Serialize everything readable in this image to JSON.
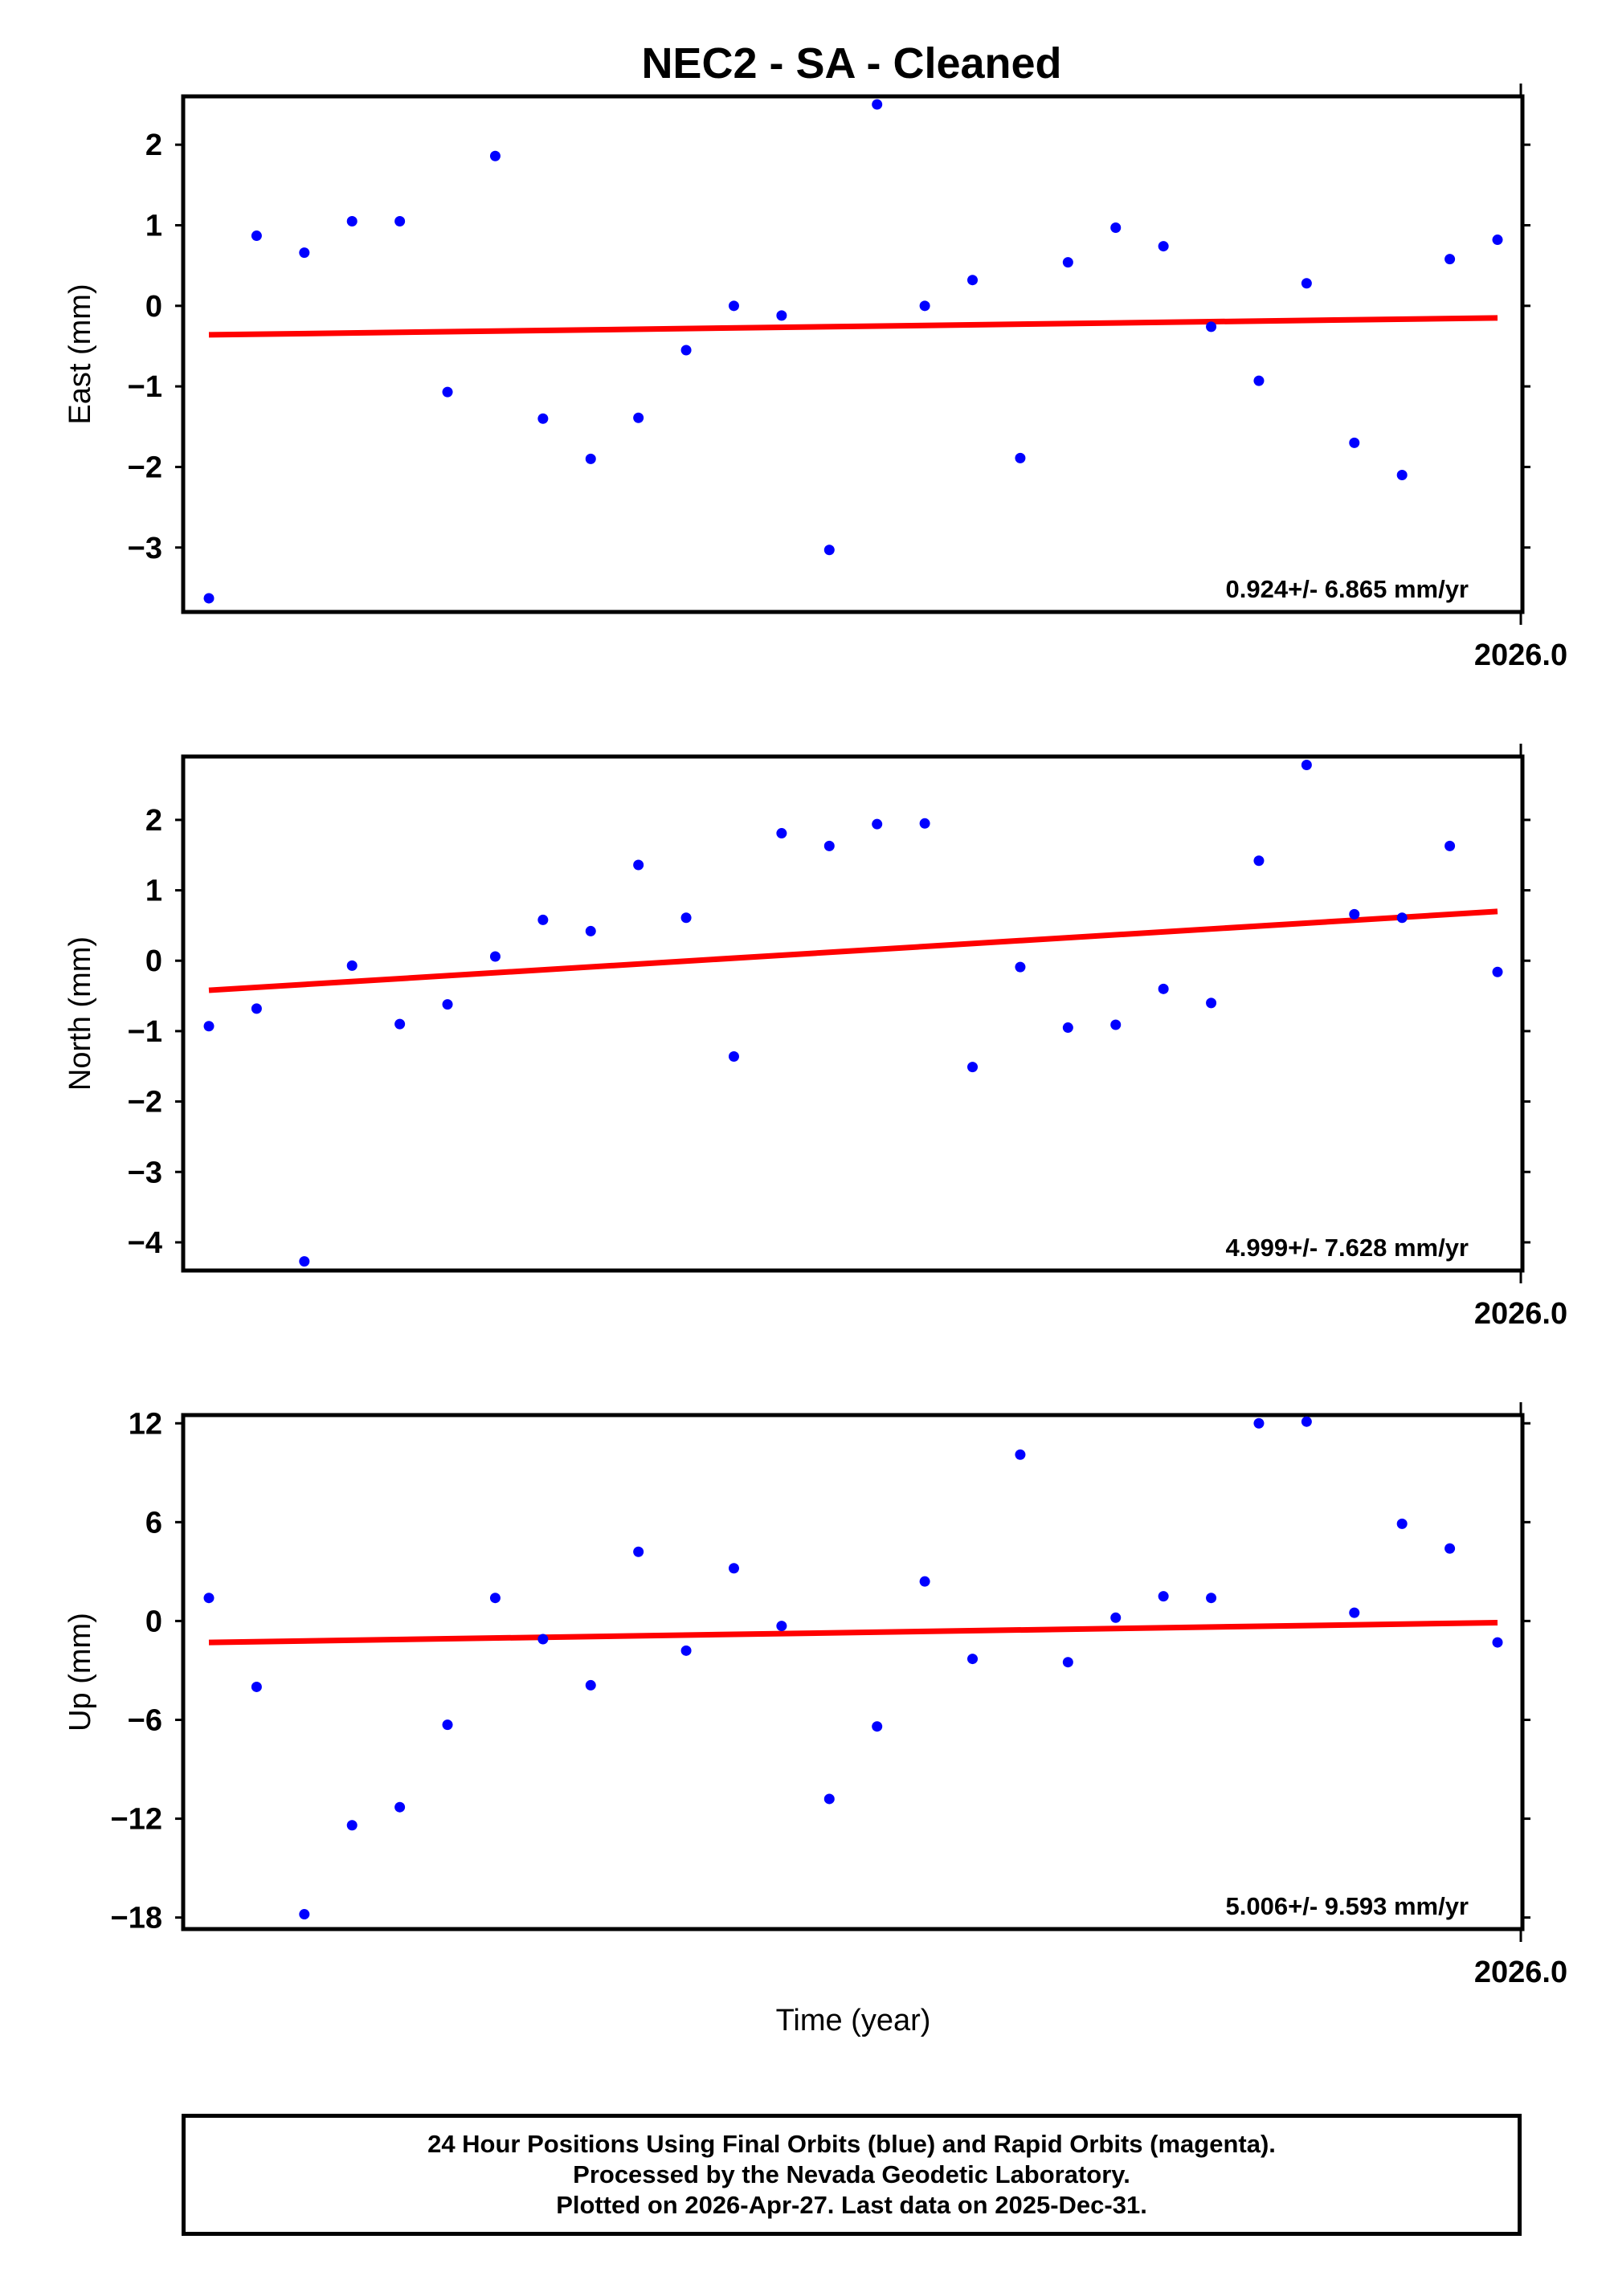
{
  "title": "NEC2  - SA - Cleaned",
  "xlabel": "Time (year)",
  "colors": {
    "data": "#0000ff",
    "fit": "#ff0000",
    "frame": "#000000"
  },
  "footer": {
    "line1": "24 Hour Positions Using Final Orbits (blue) and Rapid Orbits (magenta).",
    "line2": "Processed by the Nevada Geodetic Laboratory.",
    "line3": "Plotted on 2026-Apr-27. Last data on 2025-Dec-31."
  },
  "chart_data": [
    {
      "type": "scatter",
      "ylabel": "East (mm)",
      "ylim": [
        -3.8,
        2.6
      ],
      "yticks": [
        2,
        1,
        0,
        -1,
        -2,
        -3
      ],
      "ytick_labels": [
        "2",
        "1",
        "0",
        "−1",
        "−2",
        "−3"
      ],
      "xlim": [
        2025.493,
        2026.0
      ],
      "xtick_label": "2026.0",
      "rate": "0.924+/- 6.865 mm/yr",
      "values": [
        -3.63,
        0.87,
        0.66,
        1.05,
        1.05,
        -1.07,
        1.86,
        -1.4,
        -1.9,
        -1.39,
        -0.55,
        0.0,
        -0.12,
        -3.03,
        2.5,
        0.0,
        0.32,
        -1.89,
        0.54,
        0.97,
        0.74,
        -0.26,
        -0.93,
        0.28,
        -1.7,
        -2.1,
        0.58,
        0.82
      ],
      "fit": {
        "start": -0.36,
        "end": -0.15
      }
    },
    {
      "type": "scatter",
      "ylabel": "North (mm)",
      "ylim": [
        -4.4,
        2.9
      ],
      "yticks": [
        2,
        1,
        0,
        -1,
        -2,
        -3,
        -4
      ],
      "ytick_labels": [
        "2",
        "1",
        "0",
        "−1",
        "−2",
        "−3",
        "−4"
      ],
      "xlim": [
        2025.493,
        2026.0
      ],
      "xtick_label": "2026.0",
      "rate": "4.999+/- 7.628 mm/yr",
      "values": [
        -0.93,
        -0.68,
        -4.27,
        -0.07,
        -0.9,
        -0.62,
        0.06,
        0.58,
        0.42,
        1.36,
        0.61,
        -1.36,
        1.81,
        1.63,
        1.94,
        1.95,
        -1.51,
        -0.09,
        -0.95,
        -0.91,
        -0.4,
        -0.6,
        1.42,
        2.78,
        0.66,
        0.61,
        1.63,
        -0.16
      ],
      "fit": {
        "start": -0.42,
        "end": 0.7
      }
    },
    {
      "type": "scatter",
      "ylabel": "Up (mm)",
      "ylim": [
        -18.7,
        12.5
      ],
      "yticks": [
        12,
        6,
        0,
        -6,
        -12,
        -18
      ],
      "ytick_labels": [
        "12",
        "6",
        "0",
        "−6",
        "−12",
        "−18"
      ],
      "xlim": [
        2025.493,
        2026.0
      ],
      "xtick_label": "2026.0",
      "rate": "5.006+/- 9.593 mm/yr",
      "values": [
        1.4,
        -4.0,
        -17.8,
        -12.4,
        -11.3,
        -6.3,
        1.4,
        -1.1,
        -3.9,
        4.2,
        -1.8,
        3.2,
        -0.3,
        -10.8,
        -6.4,
        2.4,
        -2.3,
        10.1,
        -2.5,
        0.2,
        1.5,
        1.4,
        12.0,
        12.1,
        0.5,
        5.9,
        4.4,
        -1.3
      ],
      "fit": {
        "start": -1.3,
        "end": -0.1
      }
    }
  ]
}
